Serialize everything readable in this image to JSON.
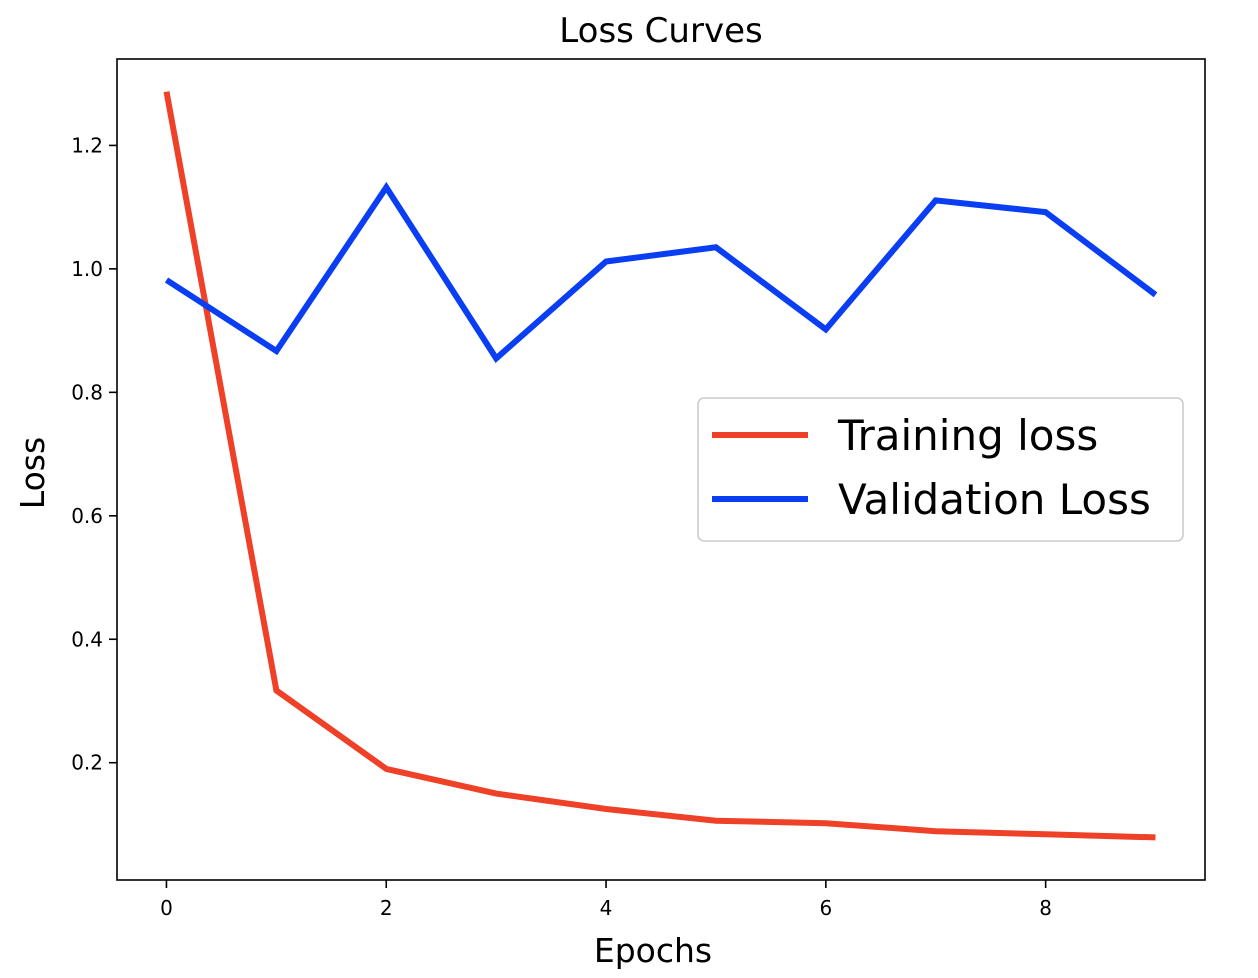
{
  "chart_data": {
    "type": "line",
    "title": "Loss Curves",
    "xlabel": "Epochs",
    "ylabel": "Loss",
    "x": [
      0,
      1,
      2,
      3,
      4,
      5,
      6,
      7,
      8,
      9
    ],
    "xlim": [
      -0.45,
      9.45
    ],
    "ylim": [
      0.01,
      1.34
    ],
    "xticks": [
      0,
      2,
      4,
      6,
      8
    ],
    "yticks": [
      0.2,
      0.4,
      0.6,
      0.8,
      1.0,
      1.2
    ],
    "xtick_labels": [
      "0",
      "2",
      "4",
      "6",
      "8"
    ],
    "ytick_labels": [
      "0.2",
      "0.4",
      "0.6",
      "0.8",
      "1.0",
      "1.2"
    ],
    "grid": false,
    "legend_position": "center-right",
    "series": [
      {
        "name": "Training loss",
        "color": "#ee4127",
        "values": [
          1.287,
          0.317,
          0.19,
          0.15,
          0.125,
          0.106,
          0.102,
          0.089,
          0.084,
          0.079
        ]
      },
      {
        "name": "Validation Loss",
        "color": "#0a3ef2",
        "values": [
          0.982,
          0.867,
          1.132,
          0.855,
          1.012,
          1.035,
          0.902,
          1.111,
          1.092,
          0.958
        ]
      }
    ]
  }
}
